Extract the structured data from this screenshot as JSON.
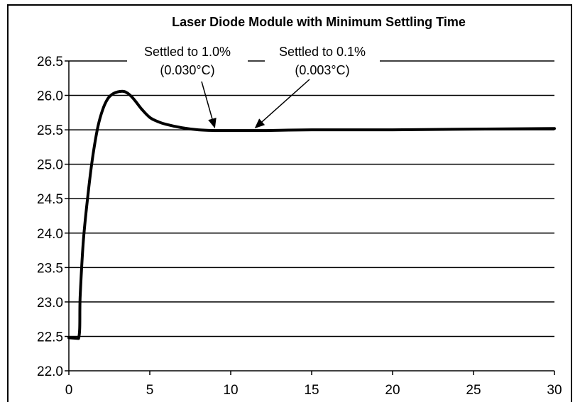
{
  "chart_data": {
    "type": "line",
    "title": "Laser Diode Module with Minimum Settling Time",
    "xlabel": "",
    "ylabel": "",
    "xlim": [
      0,
      30
    ],
    "ylim": [
      22.0,
      26.5
    ],
    "x_ticks": [
      "0",
      "5",
      "10",
      "15",
      "20",
      "25",
      "30"
    ],
    "y_ticks": [
      "22.0",
      "22.5",
      "23.0",
      "23.5",
      "24.0",
      "24.5",
      "25.0",
      "25.5",
      "26.0",
      "26.5"
    ],
    "grid": "horizontal",
    "series": [
      {
        "color": "#000000",
        "x": [
          0,
          0.6,
          0.7,
          0.9,
          1.2,
          1.5,
          1.8,
          2.1,
          2.4,
          2.7,
          3.0,
          3.3,
          3.5,
          3.8,
          4.1,
          4.5,
          5.0,
          5.5,
          6.0,
          7.0,
          8.0,
          9.0,
          10.0,
          12.0,
          15.0,
          20.0,
          25.0,
          30.0
        ],
        "y": [
          22.48,
          22.47,
          23.1,
          23.9,
          24.6,
          25.15,
          25.55,
          25.8,
          25.95,
          26.02,
          26.05,
          26.06,
          26.05,
          26.0,
          25.92,
          25.8,
          25.68,
          25.62,
          25.58,
          25.53,
          25.5,
          25.49,
          25.49,
          25.49,
          25.5,
          25.5,
          25.51,
          25.52
        ]
      }
    ],
    "annotations": [
      {
        "line1": "Settled to 1.0%",
        "line2": "(0.030°C)",
        "x": 9.2,
        "y": 25.49
      },
      {
        "line1": "Settled to 0.1%",
        "line2": "(0.003°C)",
        "x": 11.3,
        "y": 25.49
      }
    ]
  }
}
